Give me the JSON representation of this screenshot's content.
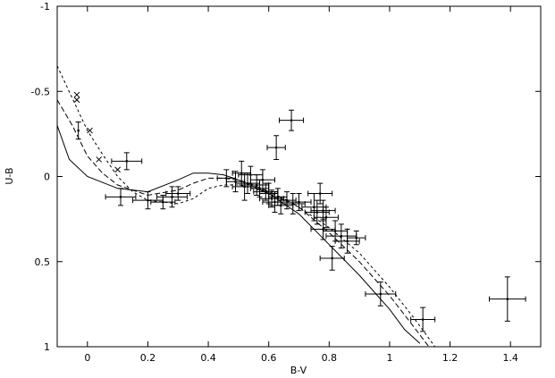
{
  "chart_data": {
    "type": "scatter",
    "title": "",
    "xlabel": "B-V",
    "ylabel": "U-B",
    "xlim": [
      -0.1,
      1.5
    ],
    "ylim": [
      1,
      -1
    ],
    "y_inverted": true,
    "grid": false,
    "legend": "none",
    "x_ticks": [
      {
        "value": 0,
        "label": "0"
      },
      {
        "value": 0.2,
        "label": "0.2"
      },
      {
        "value": 0.4,
        "label": "0.4"
      },
      {
        "value": 0.6,
        "label": "0.6"
      },
      {
        "value": 0.8,
        "label": "0.8"
      },
      {
        "value": 1.0,
        "label": "1"
      },
      {
        "value": 1.2,
        "label": "1.2"
      },
      {
        "value": 1.4,
        "label": "1.4"
      }
    ],
    "y_ticks": [
      {
        "value": -1,
        "label": "-1"
      },
      {
        "value": -0.5,
        "label": "-0.5"
      },
      {
        "value": 0,
        "label": "0"
      },
      {
        "value": 0.5,
        "label": "0.5"
      },
      {
        "value": 1,
        "label": "1"
      }
    ],
    "series": [
      {
        "style": "solid",
        "points": [
          [
            -0.1,
            -0.3
          ],
          [
            -0.06,
            -0.1
          ],
          [
            0.0,
            0.0
          ],
          [
            0.1,
            0.07
          ],
          [
            0.2,
            0.09
          ],
          [
            0.3,
            0.02
          ],
          [
            0.35,
            -0.02
          ],
          [
            0.4,
            -0.02
          ],
          [
            0.45,
            -0.01
          ],
          [
            0.5,
            0.02
          ],
          [
            0.55,
            0.06
          ],
          [
            0.6,
            0.1
          ],
          [
            0.65,
            0.16
          ],
          [
            0.7,
            0.22
          ],
          [
            0.8,
            0.4
          ],
          [
            0.9,
            0.58
          ],
          [
            1.0,
            0.78
          ],
          [
            1.05,
            0.9
          ],
          [
            1.1,
            0.98
          ]
        ]
      },
      {
        "style": "dashed",
        "points": [
          [
            -0.1,
            -0.45
          ],
          [
            -0.05,
            -0.3
          ],
          [
            0.0,
            -0.12
          ],
          [
            0.05,
            -0.02
          ],
          [
            0.1,
            0.05
          ],
          [
            0.2,
            0.11
          ],
          [
            0.3,
            0.08
          ],
          [
            0.35,
            0.04
          ],
          [
            0.4,
            0.01
          ],
          [
            0.45,
            0.01
          ],
          [
            0.5,
            0.02
          ],
          [
            0.55,
            0.05
          ],
          [
            0.6,
            0.09
          ],
          [
            0.65,
            0.13
          ],
          [
            0.7,
            0.18
          ],
          [
            0.8,
            0.33
          ],
          [
            0.9,
            0.5
          ],
          [
            1.0,
            0.7
          ],
          [
            1.07,
            0.86
          ],
          [
            1.13,
            1.0
          ]
        ]
      },
      {
        "style": "dotted",
        "points": [
          [
            -0.1,
            -0.65
          ],
          [
            -0.05,
            -0.46
          ],
          [
            0.0,
            -0.27
          ],
          [
            0.05,
            -0.13
          ],
          [
            0.1,
            0.0
          ],
          [
            0.15,
            0.09
          ],
          [
            0.2,
            0.14
          ],
          [
            0.3,
            0.16
          ],
          [
            0.35,
            0.13
          ],
          [
            0.4,
            0.07
          ],
          [
            0.45,
            0.05
          ],
          [
            0.5,
            0.05
          ],
          [
            0.55,
            0.07
          ],
          [
            0.6,
            0.1
          ],
          [
            0.65,
            0.14
          ],
          [
            0.7,
            0.18
          ],
          [
            0.8,
            0.3
          ],
          [
            0.9,
            0.45
          ],
          [
            1.0,
            0.65
          ],
          [
            1.08,
            0.83
          ],
          [
            1.15,
            1.0
          ]
        ]
      }
    ],
    "x_markers": [
      [
        -0.035,
        -0.48
      ],
      [
        -0.035,
        -0.45
      ],
      [
        0.008,
        -0.27
      ],
      [
        0.038,
        -0.1
      ],
      [
        0.1,
        -0.04
      ]
    ],
    "error_points": [
      {
        "x": -0.03,
        "y": -0.27,
        "xerr": 0.0,
        "yerr": 0.05
      },
      {
        "x": 0.13,
        "y": -0.09,
        "xerr": 0.05,
        "yerr": 0.05
      },
      {
        "x": 0.11,
        "y": 0.12,
        "xerr": 0.05,
        "yerr": 0.05
      },
      {
        "x": 0.2,
        "y": 0.14,
        "xerr": 0.05,
        "yerr": 0.05
      },
      {
        "x": 0.25,
        "y": 0.15,
        "xerr": 0.04,
        "yerr": 0.04
      },
      {
        "x": 0.28,
        "y": 0.12,
        "xerr": 0.05,
        "yerr": 0.06
      },
      {
        "x": 0.3,
        "y": 0.1,
        "xerr": 0.04,
        "yerr": 0.04
      },
      {
        "x": 0.46,
        "y": 0.01,
        "xerr": 0.03,
        "yerr": 0.05
      },
      {
        "x": 0.49,
        "y": 0.03,
        "xerr": 0.03,
        "yerr": 0.06
      },
      {
        "x": 0.51,
        "y": -0.02,
        "xerr": 0.03,
        "yerr": 0.07
      },
      {
        "x": 0.52,
        "y": 0.06,
        "xerr": 0.04,
        "yerr": 0.08
      },
      {
        "x": 0.53,
        "y": 0.04,
        "xerr": 0.04,
        "yerr": 0.06
      },
      {
        "x": 0.54,
        "y": -0.01,
        "xerr": 0.04,
        "yerr": 0.05
      },
      {
        "x": 0.56,
        "y": 0.05,
        "xerr": 0.04,
        "yerr": 0.06
      },
      {
        "x": 0.57,
        "y": 0.07,
        "xerr": 0.03,
        "yerr": 0.05
      },
      {
        "x": 0.58,
        "y": 0.02,
        "xerr": 0.04,
        "yerr": 0.06
      },
      {
        "x": 0.59,
        "y": 0.09,
        "xerr": 0.04,
        "yerr": 0.05
      },
      {
        "x": 0.6,
        "y": 0.1,
        "xerr": 0.03,
        "yerr": 0.06
      },
      {
        "x": 0.61,
        "y": 0.13,
        "xerr": 0.04,
        "yerr": 0.05
      },
      {
        "x": 0.62,
        "y": 0.15,
        "xerr": 0.04,
        "yerr": 0.06
      },
      {
        "x": 0.63,
        "y": 0.12,
        "xerr": 0.03,
        "yerr": 0.05
      },
      {
        "x": 0.64,
        "y": 0.17,
        "xerr": 0.04,
        "yerr": 0.05
      },
      {
        "x": 0.66,
        "y": 0.14,
        "xerr": 0.03,
        "yerr": 0.05
      },
      {
        "x": 0.68,
        "y": 0.16,
        "xerr": 0.04,
        "yerr": 0.06
      },
      {
        "x": 0.7,
        "y": 0.15,
        "xerr": 0.04,
        "yerr": 0.05
      },
      {
        "x": 0.625,
        "y": -0.17,
        "xerr": 0.03,
        "yerr": 0.07
      },
      {
        "x": 0.675,
        "y": -0.33,
        "xerr": 0.04,
        "yerr": 0.06
      },
      {
        "x": 0.75,
        "y": 0.18,
        "xerr": 0.04,
        "yerr": 0.08
      },
      {
        "x": 0.76,
        "y": 0.21,
        "xerr": 0.04,
        "yerr": 0.07
      },
      {
        "x": 0.77,
        "y": 0.1,
        "xerr": 0.04,
        "yerr": 0.06
      },
      {
        "x": 0.78,
        "y": 0.2,
        "xerr": 0.04,
        "yerr": 0.06
      },
      {
        "x": 0.79,
        "y": 0.24,
        "xerr": 0.04,
        "yerr": 0.06
      },
      {
        "x": 0.78,
        "y": 0.31,
        "xerr": 0.04,
        "yerr": 0.06
      },
      {
        "x": 0.82,
        "y": 0.32,
        "xerr": 0.04,
        "yerr": 0.06
      },
      {
        "x": 0.84,
        "y": 0.35,
        "xerr": 0.05,
        "yerr": 0.07
      },
      {
        "x": 0.86,
        "y": 0.38,
        "xerr": 0.04,
        "yerr": 0.07
      },
      {
        "x": 0.89,
        "y": 0.36,
        "xerr": 0.03,
        "yerr": 0.04
      },
      {
        "x": 0.81,
        "y": 0.48,
        "xerr": 0.04,
        "yerr": 0.07
      },
      {
        "x": 0.97,
        "y": 0.69,
        "xerr": 0.05,
        "yerr": 0.07
      },
      {
        "x": 1.11,
        "y": 0.84,
        "xerr": 0.04,
        "yerr": 0.07
      },
      {
        "x": 1.39,
        "y": 0.72,
        "xerr": 0.06,
        "yerr": 0.13
      }
    ]
  }
}
